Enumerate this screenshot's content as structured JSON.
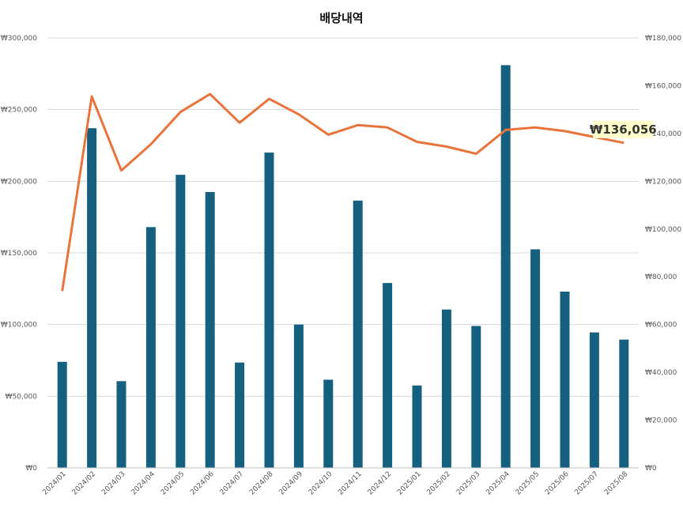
{
  "chart_data": {
    "type": "bar",
    "title": "배당내역",
    "categories": [
      "2024/01",
      "2024/02",
      "2024/03",
      "2024/04",
      "2024/05",
      "2024/06",
      "2024/07",
      "2024/08",
      "2024/09",
      "2024/10",
      "2024/11",
      "2024/12",
      "2025/01",
      "2025/02",
      "2025/03",
      "2025/04",
      "2025/05",
      "2025/06",
      "2025/07",
      "2025/08"
    ],
    "series": [
      {
        "type": "bar",
        "axis": "left",
        "color": "#15607f",
        "values": [
          74000,
          237000,
          60500,
          168000,
          204500,
          192500,
          73500,
          220000,
          100000,
          61500,
          186500,
          129000,
          57500,
          110500,
          99000,
          281000,
          152500,
          123000,
          94500,
          89500
        ]
      },
      {
        "type": "line",
        "axis": "right",
        "color": "#e8743b",
        "values": [
          74000,
          155500,
          124500,
          135500,
          149000,
          156500,
          144500,
          154500,
          148000,
          139500,
          143500,
          142500,
          136500,
          134500,
          131500,
          141500,
          142500,
          141000,
          138500,
          136056
        ]
      }
    ],
    "y_left": {
      "min": 0,
      "max": 300000,
      "ticks": [
        "₩0",
        "₩50,000",
        "₩100,000",
        "₩150,000",
        "₩200,000",
        "₩250,000",
        "₩300,000"
      ]
    },
    "y_right": {
      "min": 0,
      "max": 180000,
      "ticks": [
        "₩0",
        "₩20,000",
        "₩40,000",
        "₩60,000",
        "₩80,000",
        "₩100,000",
        "₩120,000",
        "₩140,000",
        "₩160,000",
        "₩180,000"
      ]
    },
    "grid": true,
    "callout": {
      "text": "₩136,056",
      "background": "#ffffcc"
    }
  }
}
